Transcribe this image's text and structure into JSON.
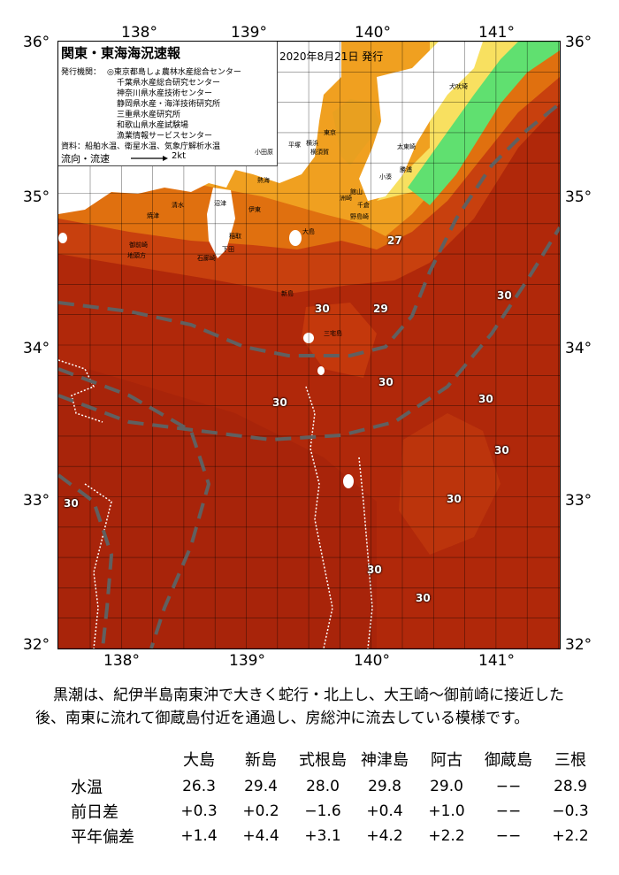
{
  "axes": {
    "longitudes": [
      "138°",
      "139°",
      "140°",
      "141°"
    ],
    "latitudes": [
      "36°",
      "35°",
      "34°",
      "33°",
      "32°"
    ]
  },
  "header": {
    "title": "関東・東海海況速報",
    "issued": "2020年8月21日 発行",
    "organizations_label": "発行機関：",
    "organizations": [
      "◎東京都島しょ農林水産総合センター",
      "千葉県水産総合研究センター",
      "神奈川県水産技術センター",
      "静岡県水産・海洋技術研究所",
      "三重県水産研究所",
      "和歌山県水産試験場",
      "漁業情報サービスセンター"
    ],
    "data_sources": "資料：船舶水温、衛星水温、気象庁解析水温",
    "flow_label": "流向・流速",
    "flow_scale": "2kt"
  },
  "temperature_labels": [
    {
      "text": "27"
    },
    {
      "text": "29"
    },
    {
      "text": "30"
    },
    {
      "text": "30"
    },
    {
      "text": "30"
    },
    {
      "text": "30"
    },
    {
      "text": "30"
    },
    {
      "text": "30"
    },
    {
      "text": "30"
    },
    {
      "text": "30"
    },
    {
      "text": "30"
    },
    {
      "text": "30"
    }
  ],
  "place_names": [
    "犬吠埼",
    "太東崎",
    "勝浦",
    "小湊",
    "洲崎",
    "館山",
    "千倉",
    "野島崎",
    "横須賀",
    "平塚",
    "小田原",
    "横浜",
    "東京",
    "熱海",
    "伊東",
    "沼津",
    "清水",
    "焼津",
    "御前崎",
    "地頭方",
    "稲取",
    "下田",
    "石廊崎",
    "新島",
    "三宅島",
    "大島"
  ],
  "summary": {
    "line1": "黒潮は、紀伊半島南東沖で大きく蛇行・北上し、大王崎～御前崎に接近した",
    "line2": "後、南東に流れて御蔵島付近を通過し、房総沖に流去している模様です。"
  },
  "stats": {
    "stations": [
      "大島",
      "新島",
      "式根島",
      "神津島",
      "阿古",
      "御蔵島",
      "三根"
    ],
    "rows": [
      {
        "label": "水温",
        "values": [
          "26.3",
          "29.4",
          "28.0",
          "29.8",
          "29.0",
          "−−",
          "28.9"
        ]
      },
      {
        "label": "前日差",
        "values": [
          "+0.3",
          "+0.2",
          "−1.6",
          "+0.4",
          "+1.0",
          "−−",
          "−0.3"
        ]
      },
      {
        "label": "平年偏差",
        "values": [
          "+1.4",
          "+4.4",
          "+3.1",
          "+4.2",
          "+2.2",
          "−−",
          "+2.2"
        ]
      }
    ]
  },
  "colors": {
    "sea_deep": "#b0280a",
    "sea_warm": "#c8400e",
    "sea_orange": "#e0700f",
    "sea_light_orange": "#f0a020",
    "sea_yellow": "#f8e060",
    "sea_green": "#60e070",
    "land": "#ffffff",
    "kuroshio_axis": "#606060"
  }
}
